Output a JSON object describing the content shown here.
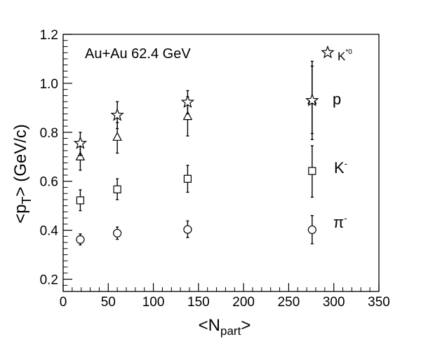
{
  "chart_data": {
    "type": "scatter",
    "annotation": "Au+Au 62.4 GeV",
    "xlabel": {
      "main": "<N",
      "sub": "part",
      "end": ">"
    },
    "ylabel": {
      "main": "<p",
      "sub": "T",
      "end": "> (GeV/c)"
    },
    "xlim": [
      0,
      350
    ],
    "ylim": [
      0.15,
      1.2
    ],
    "xticks": [
      0,
      50,
      100,
      150,
      200,
      250,
      300,
      350
    ],
    "yticks": [
      0.2,
      0.4,
      0.6,
      0.8,
      1.0,
      1.2
    ],
    "ytick_labels": [
      "0.2",
      "0.4",
      "0.6",
      "0.8",
      "1.0",
      "1.2"
    ],
    "grid": false,
    "series": [
      {
        "label": {
          "main": "K",
          "sup": "*0"
        },
        "marker": "star",
        "points": [
          {
            "x": 19,
            "y": 0.755,
            "lo": 0.705,
            "hi": 0.8
          },
          {
            "x": 60,
            "y": 0.87,
            "lo": 0.815,
            "hi": 0.925
          },
          {
            "x": 138,
            "y": 0.923,
            "lo": 0.875,
            "hi": 0.97
          },
          {
            "x": 276,
            "y": 0.93,
            "lo": 0.77,
            "hi": 1.09
          }
        ]
      },
      {
        "label": {
          "main": "p",
          "sup": ""
        },
        "marker": "triangle",
        "points": [
          {
            "x": 19,
            "y": 0.7,
            "lo": 0.645,
            "hi": 0.75
          },
          {
            "x": 60,
            "y": 0.78,
            "lo": 0.715,
            "hi": 0.84
          },
          {
            "x": 138,
            "y": 0.865,
            "lo": 0.785,
            "hi": 0.945
          },
          {
            "x": 276,
            "y": 0.93,
            "lo": 0.795,
            "hi": 1.07
          }
        ]
      },
      {
        "label": {
          "main": "K",
          "sup": "-"
        },
        "marker": "square",
        "points": [
          {
            "x": 19,
            "y": 0.522,
            "lo": 0.48,
            "hi": 0.565
          },
          {
            "x": 60,
            "y": 0.567,
            "lo": 0.525,
            "hi": 0.61
          },
          {
            "x": 138,
            "y": 0.61,
            "lo": 0.555,
            "hi": 0.665
          },
          {
            "x": 276,
            "y": 0.642,
            "lo": 0.535,
            "hi": 0.745
          }
        ]
      },
      {
        "label": {
          "main": "π",
          "sup": "-"
        },
        "marker": "circle",
        "points": [
          {
            "x": 19,
            "y": 0.362,
            "lo": 0.34,
            "hi": 0.385
          },
          {
            "x": 60,
            "y": 0.388,
            "lo": 0.363,
            "hi": 0.413
          },
          {
            "x": 138,
            "y": 0.403,
            "lo": 0.37,
            "hi": 0.438
          },
          {
            "x": 276,
            "y": 0.402,
            "lo": 0.345,
            "hi": 0.46
          }
        ]
      }
    ]
  }
}
